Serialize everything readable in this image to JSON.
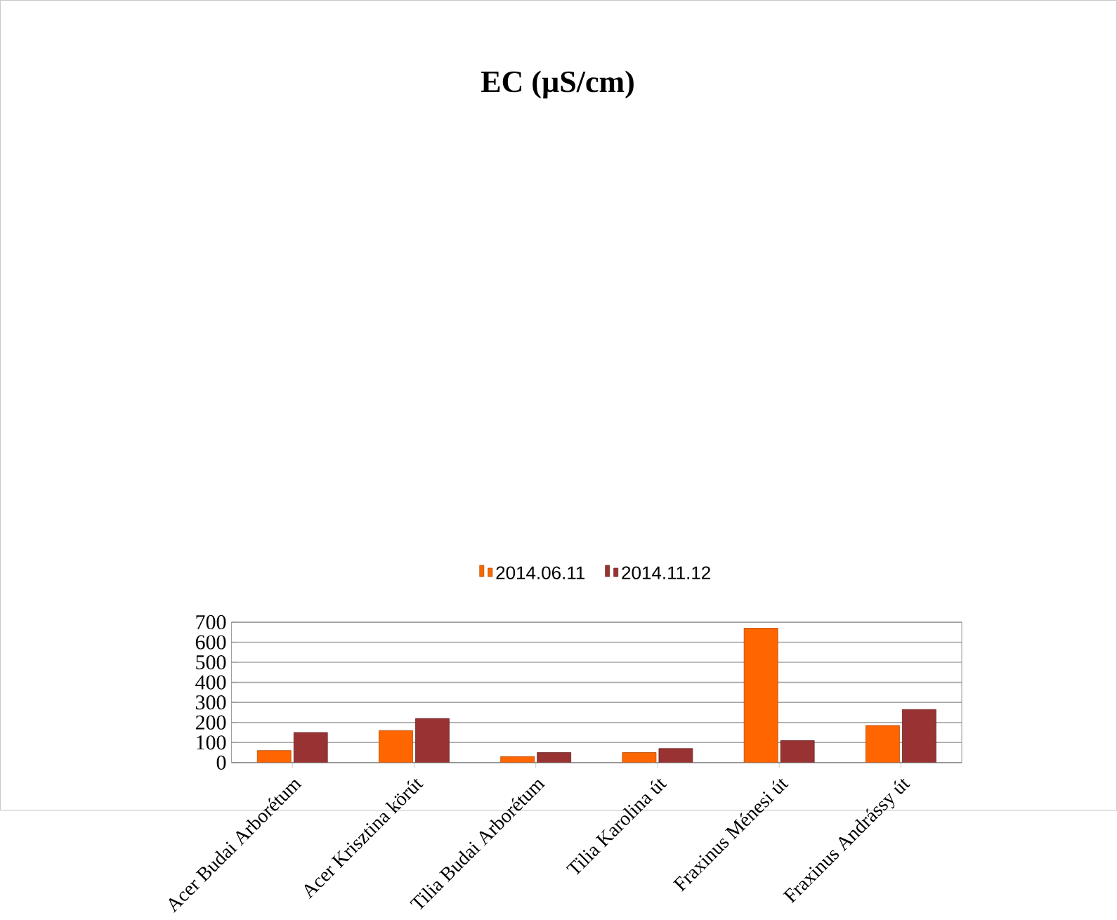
{
  "chart_data": {
    "type": "bar",
    "title": "EC (µS/cm)",
    "categories": [
      "Acer Budai Arborétum",
      "Acer Krisztina körút",
      "Tilia Budai Arborétum",
      "Tilia Karolina út",
      "Fraxinus Ménesi út",
      "Fraxinus Andrássy út"
    ],
    "series": [
      {
        "name": "2014.06.11",
        "color": "#ff6600",
        "values": [
          60,
          160,
          30,
          50,
          670,
          185
        ]
      },
      {
        "name": "2014.11.12",
        "color": "#993333",
        "values": [
          150,
          220,
          50,
          70,
          110,
          265
        ]
      }
    ],
    "ylim": [
      0,
      700
    ],
    "yticks": [
      0,
      100,
      200,
      300,
      400,
      500,
      600,
      700
    ],
    "grid": "y",
    "legend": "top"
  }
}
